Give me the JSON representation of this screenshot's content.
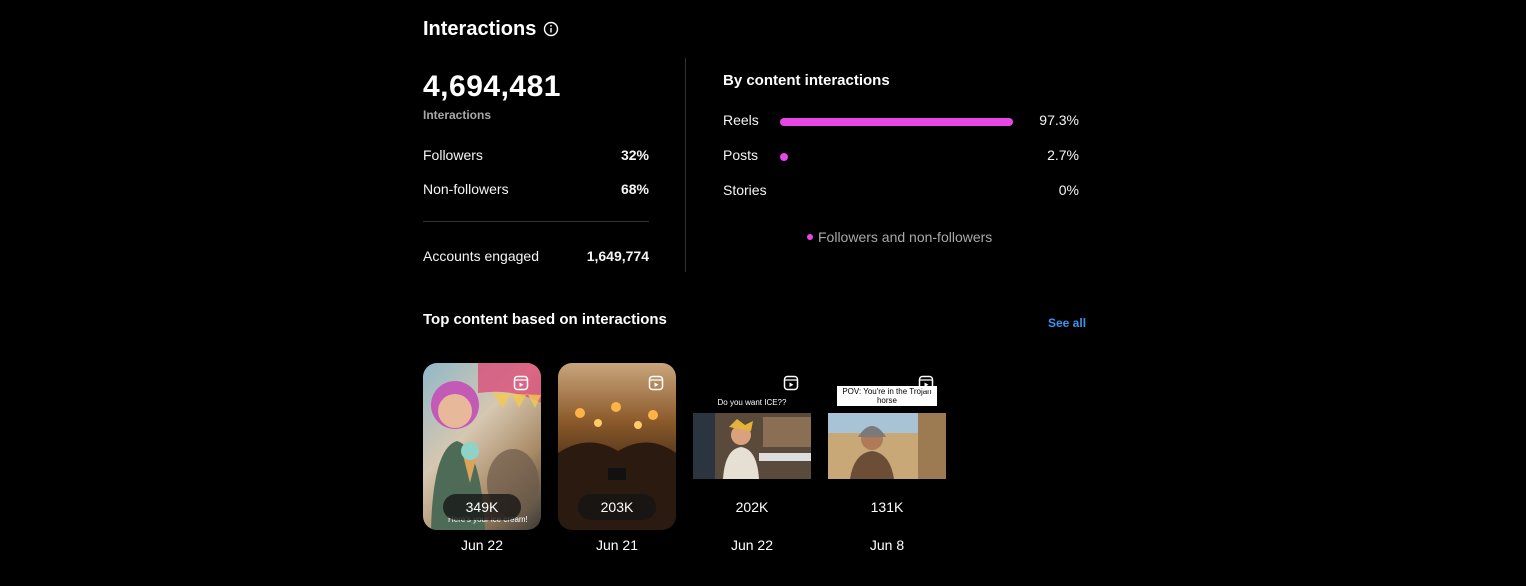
{
  "header": {
    "title": "Interactions"
  },
  "summary": {
    "total": "4,694,481",
    "total_label": "Interactions",
    "rows": [
      {
        "label": "Followers",
        "value": "32%"
      },
      {
        "label": "Non-followers",
        "value": "68%"
      }
    ],
    "accounts_engaged": {
      "label": "Accounts engaged",
      "value": "1,649,774"
    }
  },
  "by_content": {
    "title": "By content interactions",
    "items": [
      {
        "label": "Reels",
        "pct_text": "97.3%",
        "pct": 97.3
      },
      {
        "label": "Posts",
        "pct_text": "2.7%",
        "pct": 2.7
      },
      {
        "label": "Stories",
        "pct_text": "0%",
        "pct": 0
      }
    ],
    "legend": "Followers and non-followers",
    "accent_color": "#e946e6"
  },
  "top_content": {
    "title": "Top content based on interactions",
    "see_all": "See all",
    "items": [
      {
        "count": "349K",
        "date": "Jun 22",
        "caption": "Here's your ice cream!"
      },
      {
        "count": "203K",
        "date": "Jun 21",
        "caption": ""
      },
      {
        "count": "202K",
        "date": "Jun 22",
        "caption": "Do you want ICE??"
      },
      {
        "count": "131K",
        "date": "Jun 8",
        "caption": "POV: You're in the Trojan horse"
      }
    ]
  },
  "icons": {
    "info": "info-icon",
    "reel": "reel-icon"
  }
}
